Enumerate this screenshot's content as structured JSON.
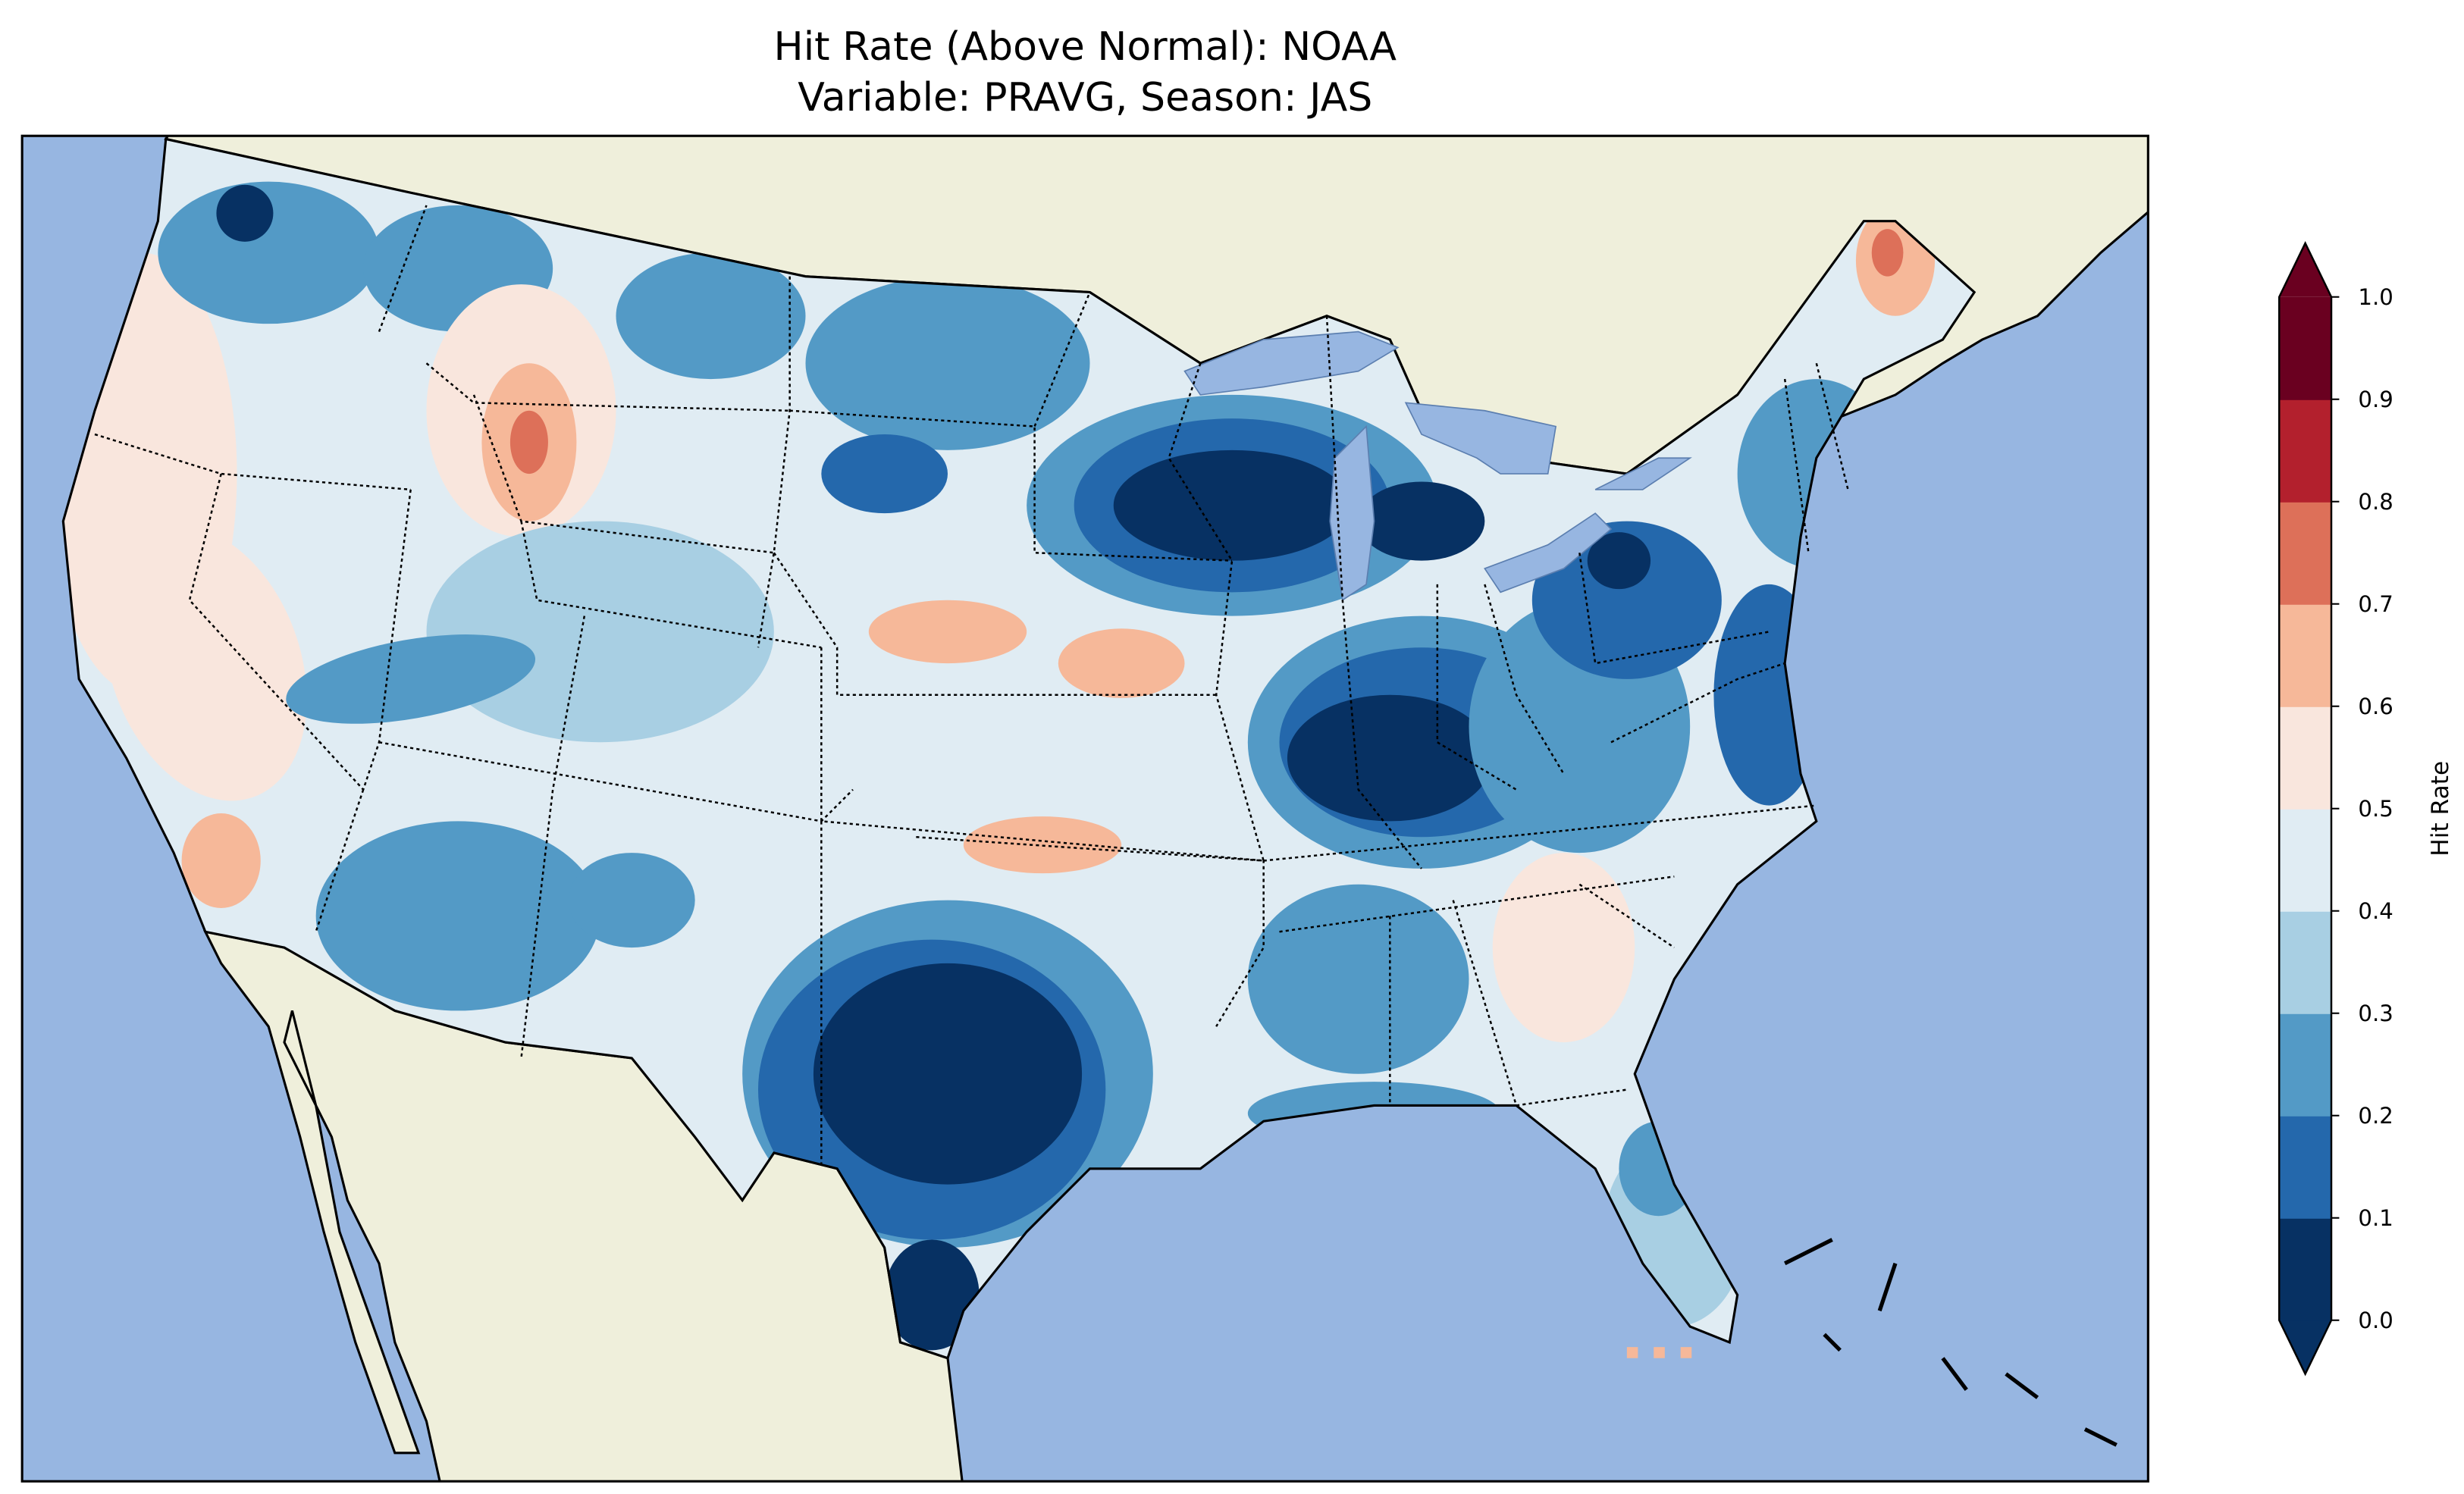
{
  "chart_data": {
    "type": "heatmap",
    "title": "Hit Rate (Above Normal): NOAA",
    "subtitle": "Variable: PRAVG, Season: JAS",
    "colorbar": {
      "label": "Hit Rate",
      "range": [
        0.0,
        1.0
      ],
      "extend": "both",
      "ticks": [
        "0.0",
        "0.1",
        "0.2",
        "0.3",
        "0.4",
        "0.5",
        "0.6",
        "0.7",
        "0.8",
        "0.9",
        "1.0"
      ],
      "bin_colors": [
        "#073163",
        "#2468ac",
        "#539ac6",
        "#a8cfe3",
        "#e0ecf3",
        "#f9e6dd",
        "#f6b899",
        "#dd7059",
        "#b3202d",
        "#6a0020"
      ]
    },
    "base_value": 0.45,
    "regions": [
      {
        "name": "pacific-coast",
        "value": 0.55
      },
      {
        "name": "nevada-west",
        "value": 0.55
      },
      {
        "name": "southern-california",
        "value": 0.65
      },
      {
        "name": "washington-north",
        "value": 0.25
      },
      {
        "name": "puget-sound",
        "value": 0.05
      },
      {
        "name": "montana-west",
        "value": 0.25
      },
      {
        "name": "idaho",
        "value": 0.55
      },
      {
        "name": "idaho-peak",
        "value": 0.65
      },
      {
        "name": "idaho-core",
        "value": 0.75
      },
      {
        "name": "montana-east",
        "value": 0.25
      },
      {
        "name": "dakotas",
        "value": 0.25
      },
      {
        "name": "south-dakota",
        "value": 0.15
      },
      {
        "name": "utah-colorado",
        "value": 0.35
      },
      {
        "name": "utah-band",
        "value": 0.25
      },
      {
        "name": "nebraska",
        "value": 0.65
      },
      {
        "name": "kansas",
        "value": 0.65
      },
      {
        "name": "arizona-newmexico",
        "value": 0.25
      },
      {
        "name": "new-mexico-blue",
        "value": 0.25
      },
      {
        "name": "oklahoma",
        "value": 0.65
      },
      {
        "name": "texas-outer",
        "value": 0.25
      },
      {
        "name": "texas-mid",
        "value": 0.15
      },
      {
        "name": "texas-core",
        "value": 0.05
      },
      {
        "name": "texas-south",
        "value": 0.05
      },
      {
        "name": "upper-midwest-outer",
        "value": 0.25
      },
      {
        "name": "upper-midwest-mid",
        "value": 0.15
      },
      {
        "name": "upper-midwest-core",
        "value": 0.05
      },
      {
        "name": "michigan",
        "value": 0.05
      },
      {
        "name": "ohio-valley-outer",
        "value": 0.25
      },
      {
        "name": "ohio-valley-mid",
        "value": 0.15
      },
      {
        "name": "ohio-valley-core",
        "value": 0.05
      },
      {
        "name": "mississippi-alabama",
        "value": 0.25
      },
      {
        "name": "appalachia",
        "value": 0.25
      },
      {
        "name": "pennsylvania",
        "value": 0.15
      },
      {
        "name": "pennsylvania-core",
        "value": 0.05
      },
      {
        "name": "mid-atlantic",
        "value": 0.15
      },
      {
        "name": "new-england",
        "value": 0.25
      },
      {
        "name": "maine",
        "value": 0.65
      },
      {
        "name": "maine-core",
        "value": 0.75
      },
      {
        "name": "georgia",
        "value": 0.55
      },
      {
        "name": "florida",
        "value": 0.35
      },
      {
        "name": "florida-north",
        "value": 0.25
      },
      {
        "name": "gulf-coast",
        "value": 0.25
      }
    ]
  }
}
